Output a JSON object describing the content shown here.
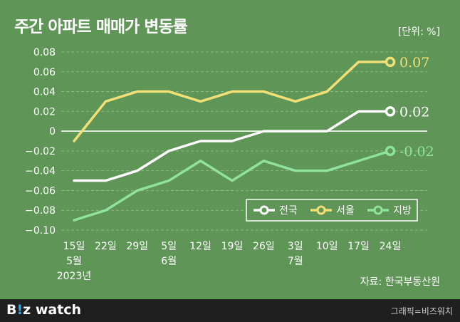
{
  "header": {
    "title": "주간 아파트 매매가 변동률",
    "unit": "[단위: %]"
  },
  "footer": {
    "source": "자료: 한국부동산원",
    "brand_main": "B",
    "brand_accent": "!",
    "brand_rest": "z watch",
    "credit": "그래픽=비즈워치"
  },
  "colors": {
    "background": "#5f9557",
    "grid": "#8fb787",
    "national": "#ffffff",
    "seoul": "#f1e077",
    "regional": "#8fe39f",
    "footer_bg": "#1f1f1f"
  },
  "chart_data": {
    "type": "line",
    "title": "주간 아파트 매매가 변동률",
    "ylabel": "[단위: %]",
    "ylim": [
      -0.1,
      0.08
    ],
    "yticks": [
      0.08,
      0.06,
      0.04,
      0.02,
      0,
      -0.02,
      -0.04,
      -0.06,
      -0.08,
      -0.1
    ],
    "ytick_labels": [
      "0.08",
      "0.06",
      "0.04",
      "0.02",
      "0",
      "−0.02",
      "−0.04",
      "−0.06",
      "−0.08",
      "−0.10"
    ],
    "categories": [
      "15일",
      "22일",
      "29일",
      "5일",
      "12일",
      "19일",
      "26일",
      "3일",
      "10일",
      "17일",
      "24일"
    ],
    "month_labels": [
      {
        "index": 0,
        "month": "5월",
        "year": "2023년"
      },
      {
        "index": 3,
        "month": "6월"
      },
      {
        "index": 7,
        "month": "7월"
      }
    ],
    "grid": true,
    "legend_position": "bottom-right",
    "series": [
      {
        "name": "전국",
        "color": "#ffffff",
        "values": [
          -0.05,
          -0.05,
          -0.04,
          -0.02,
          -0.01,
          -0.01,
          0.0,
          0.0,
          0.0,
          0.02,
          0.02
        ],
        "end_label": "0.02"
      },
      {
        "name": "서울",
        "color": "#f1e077",
        "values": [
          -0.01,
          0.03,
          0.04,
          0.04,
          0.03,
          0.04,
          0.04,
          0.03,
          0.04,
          0.07,
          0.07
        ],
        "end_label": "0.07"
      },
      {
        "name": "지방",
        "color": "#8fe39f",
        "values": [
          -0.09,
          -0.08,
          -0.06,
          -0.05,
          -0.03,
          -0.05,
          -0.03,
          -0.04,
          -0.04,
          -0.03,
          -0.02
        ],
        "end_label": "-0.02"
      }
    ]
  }
}
